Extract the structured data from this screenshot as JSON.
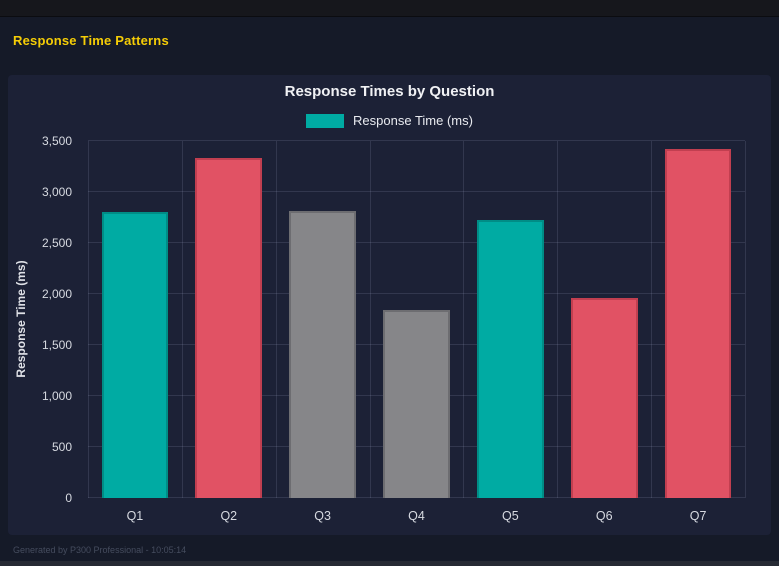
{
  "page": {
    "section_title": "Response Time Patterns"
  },
  "footer": {
    "text": "Generated by P300 Professional - 10:05:14"
  },
  "chart_data": {
    "type": "bar",
    "title": "Response Times by Question",
    "legend": {
      "label": "Response Time (ms)",
      "swatch_color": "#00aba3",
      "position": "top"
    },
    "categories": [
      "Q1",
      "Q2",
      "Q3",
      "Q4",
      "Q5",
      "Q6",
      "Q7"
    ],
    "values": [
      2800,
      3330,
      2810,
      1840,
      2730,
      1960,
      3420
    ],
    "bar_colors": [
      "#00aba3",
      "#e15264",
      "#868689",
      "#868689",
      "#00aba3",
      "#e15264",
      "#e15264"
    ],
    "bar_border_colors": [
      "#008d86",
      "#c13f50",
      "#6d6d71",
      "#6d6d71",
      "#008d86",
      "#c13f50",
      "#c13f50"
    ],
    "xlabel": "",
    "ylabel": "Response Time (ms)",
    "ylim": [
      0,
      3500
    ],
    "y_ticks": [
      0,
      500,
      1000,
      1500,
      2000,
      2500,
      3000,
      3500
    ],
    "y_tick_labels": [
      "0",
      "500",
      "1,000",
      "1,500",
      "2,000",
      "2,500",
      "3,000",
      "3,500"
    ],
    "grid": true
  },
  "colors": {
    "page_background": "#151a28",
    "card_background": "#1c2136",
    "topbar_background": "#16171c",
    "section_title_color": "#f5cd06",
    "teal": "#00aba3",
    "red": "#e15264",
    "gray": "#868689"
  }
}
